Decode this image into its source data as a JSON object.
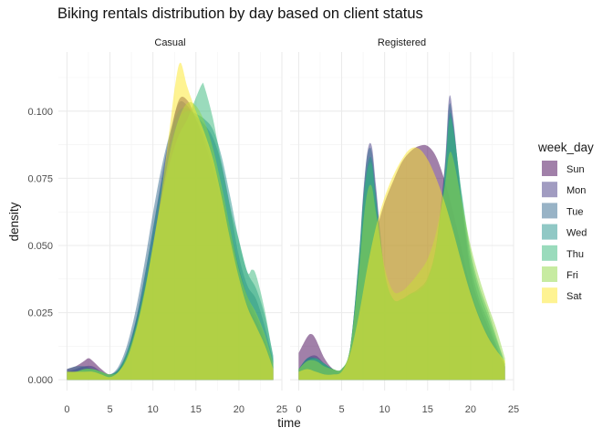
{
  "chart_data": {
    "type": "area",
    "title": "Biking rentals distribution by day based on client status",
    "xlabel": "time",
    "ylabel": "density",
    "xlim": [
      -1,
      25
    ],
    "ylim": [
      -0.004,
      0.122
    ],
    "x_ticks": [
      0,
      5,
      10,
      15,
      20,
      25
    ],
    "y_ticks": [
      0.0,
      0.025,
      0.05,
      0.075,
      0.1
    ],
    "y_tick_labels": [
      "0.000",
      "0.025",
      "0.050",
      "0.075",
      "0.100"
    ],
    "grid": true,
    "legend_position": "right",
    "legend_title": "week_day",
    "panels": [
      {
        "label": "Casual",
        "series": [
          {
            "name": "Sun",
            "x": [
              0,
              1,
              2,
              2.5,
              3,
              4,
              5,
              6,
              7,
              8,
              9,
              10,
              11,
              12,
              13,
              14,
              15,
              16,
              17,
              18,
              19,
              20,
              21,
              22,
              23,
              24
            ],
            "values": [
              0.004,
              0.005,
              0.007,
              0.008,
              0.007,
              0.004,
              0.002,
              0.004,
              0.01,
              0.021,
              0.034,
              0.05,
              0.07,
              0.09,
              0.104,
              0.104,
              0.097,
              0.088,
              0.078,
              0.066,
              0.052,
              0.038,
              0.028,
              0.022,
              0.014,
              0.004
            ]
          },
          {
            "name": "Mon",
            "x": [
              0,
              1,
              2,
              3,
              4,
              5,
              6,
              7,
              8,
              9,
              10,
              11,
              12,
              13,
              14,
              15,
              16,
              17,
              18,
              19,
              20,
              21,
              22,
              23,
              24
            ],
            "values": [
              0.003,
              0.004,
              0.005,
              0.005,
              0.003,
              0.002,
              0.004,
              0.01,
              0.022,
              0.038,
              0.056,
              0.075,
              0.092,
              0.103,
              0.102,
              0.097,
              0.09,
              0.081,
              0.07,
              0.056,
              0.042,
              0.031,
              0.024,
              0.016,
              0.005
            ]
          },
          {
            "name": "Tue",
            "x": [
              0,
              1,
              2,
              3,
              4,
              5,
              6,
              7,
              8,
              9,
              10,
              11,
              12,
              13,
              14,
              15,
              16,
              17,
              18,
              19,
              20,
              21,
              22,
              23,
              24
            ],
            "values": [
              0.004,
              0.005,
              0.005,
              0.004,
              0.003,
              0.002,
              0.005,
              0.013,
              0.026,
              0.043,
              0.062,
              0.079,
              0.092,
              0.1,
              0.101,
              0.098,
              0.095,
              0.09,
              0.08,
              0.064,
              0.046,
              0.035,
              0.03,
              0.02,
              0.007
            ]
          },
          {
            "name": "Wed",
            "x": [
              0,
              1,
              2,
              3,
              4,
              5,
              6,
              7,
              8,
              9,
              10,
              11,
              12,
              13,
              14,
              15,
              16,
              17,
              18,
              19,
              20,
              21,
              22,
              23,
              24
            ],
            "values": [
              0.003,
              0.003,
              0.004,
              0.004,
              0.003,
              0.002,
              0.004,
              0.011,
              0.022,
              0.038,
              0.056,
              0.073,
              0.087,
              0.097,
              0.1,
              0.099,
              0.097,
              0.093,
              0.083,
              0.068,
              0.052,
              0.04,
              0.034,
              0.024,
              0.009
            ]
          },
          {
            "name": "Thu",
            "x": [
              0,
              1,
              2,
              3,
              4,
              5,
              6,
              7,
              8,
              9,
              10,
              11,
              12,
              13,
              14,
              15,
              15.7,
              16,
              17,
              18,
              19,
              20,
              21,
              21.5,
              22,
              23,
              24
            ],
            "values": [
              0.003,
              0.003,
              0.004,
              0.004,
              0.003,
              0.002,
              0.004,
              0.01,
              0.02,
              0.034,
              0.05,
              0.067,
              0.081,
              0.091,
              0.097,
              0.105,
              0.11,
              0.109,
              0.097,
              0.08,
              0.064,
              0.052,
              0.04,
              0.041,
              0.039,
              0.026,
              0.008
            ]
          },
          {
            "name": "Fri",
            "x": [
              0,
              1,
              2,
              3,
              4,
              5,
              6,
              7,
              8,
              9,
              10,
              11,
              12,
              13,
              14,
              15,
              16,
              17,
              18,
              19,
              20,
              21,
              22,
              23,
              24
            ],
            "values": [
              0.003,
              0.003,
              0.004,
              0.004,
              0.003,
              0.002,
              0.003,
              0.009,
              0.019,
              0.033,
              0.05,
              0.068,
              0.085,
              0.097,
              0.103,
              0.102,
              0.096,
              0.086,
              0.072,
              0.056,
              0.041,
              0.031,
              0.025,
              0.017,
              0.006
            ]
          },
          {
            "name": "Sat",
            "x": [
              0,
              1,
              2,
              3,
              4,
              5,
              6,
              7,
              8,
              9,
              10,
              11,
              12,
              12.6,
              13.2,
              14,
              15,
              16,
              17,
              18,
              19,
              20,
              21,
              22,
              23,
              24
            ],
            "values": [
              0.003,
              0.003,
              0.003,
              0.003,
              0.002,
              0.001,
              0.003,
              0.008,
              0.018,
              0.032,
              0.05,
              0.07,
              0.095,
              0.11,
              0.118,
              0.109,
              0.1,
              0.092,
              0.082,
              0.068,
              0.052,
              0.038,
              0.027,
              0.02,
              0.013,
              0.004
            ]
          }
        ]
      },
      {
        "label": "Registered",
        "series": [
          {
            "name": "Sun",
            "x": [
              0,
              1,
              1.5,
              2,
              3,
              4,
              5,
              6,
              7,
              8,
              9,
              10,
              11,
              12,
              13,
              14,
              15,
              16,
              17,
              18,
              19,
              20,
              21,
              22,
              23,
              24
            ],
            "values": [
              0.01,
              0.016,
              0.017,
              0.015,
              0.008,
              0.004,
              0.003,
              0.01,
              0.024,
              0.042,
              0.055,
              0.066,
              0.074,
              0.081,
              0.085,
              0.087,
              0.087,
              0.083,
              0.074,
              0.062,
              0.048,
              0.034,
              0.024,
              0.017,
              0.011,
              0.005
            ]
          },
          {
            "name": "Mon",
            "x": [
              0,
              1,
              2,
              3,
              4,
              5,
              6,
              7,
              7.5,
              8,
              8.5,
              9,
              10,
              11,
              12,
              13,
              14,
              15,
              16,
              17,
              17.5,
              18,
              19,
              20,
              21,
              22,
              23,
              24
            ],
            "values": [
              0.004,
              0.008,
              0.009,
              0.006,
              0.004,
              0.004,
              0.012,
              0.045,
              0.068,
              0.085,
              0.087,
              0.072,
              0.04,
              0.03,
              0.03,
              0.032,
              0.034,
              0.038,
              0.05,
              0.08,
              0.105,
              0.097,
              0.065,
              0.04,
              0.028,
              0.02,
              0.012,
              0.005
            ]
          },
          {
            "name": "Tue",
            "x": [
              0,
              1,
              2,
              3,
              4,
              5,
              6,
              7,
              7.5,
              8,
              8.5,
              9,
              10,
              11,
              12,
              13,
              14,
              15,
              16,
              17,
              17.5,
              18,
              19,
              20,
              21,
              22,
              23,
              24
            ],
            "values": [
              0.004,
              0.008,
              0.008,
              0.006,
              0.004,
              0.004,
              0.012,
              0.046,
              0.069,
              0.084,
              0.085,
              0.07,
              0.04,
              0.03,
              0.03,
              0.032,
              0.033,
              0.037,
              0.05,
              0.079,
              0.102,
              0.095,
              0.066,
              0.043,
              0.03,
              0.022,
              0.013,
              0.005
            ]
          },
          {
            "name": "Wed",
            "x": [
              0,
              1,
              2,
              3,
              4,
              5,
              6,
              7,
              7.5,
              8,
              8.5,
              9,
              10,
              11,
              12,
              13,
              14,
              15,
              16,
              17,
              17.5,
              18,
              19,
              20,
              21,
              22,
              23,
              24
            ],
            "values": [
              0.004,
              0.008,
              0.008,
              0.006,
              0.004,
              0.004,
              0.012,
              0.045,
              0.066,
              0.08,
              0.082,
              0.068,
              0.04,
              0.03,
              0.03,
              0.032,
              0.033,
              0.037,
              0.049,
              0.076,
              0.098,
              0.094,
              0.068,
              0.046,
              0.033,
              0.024,
              0.015,
              0.006
            ]
          },
          {
            "name": "Thu",
            "x": [
              0,
              1,
              2,
              3,
              4,
              5,
              6,
              7,
              7.5,
              8,
              8.5,
              9,
              10,
              11,
              12,
              13,
              14,
              15,
              16,
              17,
              17.5,
              18,
              19,
              20,
              21,
              22,
              23,
              24
            ],
            "values": [
              0.004,
              0.007,
              0.008,
              0.006,
              0.004,
              0.004,
              0.012,
              0.044,
              0.065,
              0.078,
              0.08,
              0.066,
              0.04,
              0.03,
              0.03,
              0.032,
              0.034,
              0.038,
              0.05,
              0.076,
              0.096,
              0.093,
              0.069,
              0.048,
              0.035,
              0.026,
              0.016,
              0.006
            ]
          },
          {
            "name": "Fri",
            "x": [
              0,
              1,
              2,
              3,
              4,
              5,
              6,
              7,
              7.5,
              8,
              8.5,
              9,
              10,
              11,
              12,
              13,
              14,
              15,
              16,
              17,
              17.5,
              18,
              19,
              20,
              21,
              22,
              23,
              24
            ],
            "values": [
              0.004,
              0.007,
              0.007,
              0.005,
              0.004,
              0.004,
              0.012,
              0.04,
              0.058,
              0.07,
              0.072,
              0.062,
              0.042,
              0.033,
              0.033,
              0.036,
              0.04,
              0.045,
              0.055,
              0.072,
              0.084,
              0.082,
              0.066,
              0.05,
              0.038,
              0.028,
              0.019,
              0.008
            ]
          },
          {
            "name": "Sat",
            "x": [
              0,
              1,
              2,
              3,
              4,
              5,
              6,
              7,
              8,
              9,
              10,
              11,
              12,
              13,
              14,
              15,
              16,
              17,
              18,
              19,
              20,
              21,
              22,
              23,
              24
            ],
            "values": [
              0.003,
              0.004,
              0.003,
              0.002,
              0.002,
              0.003,
              0.01,
              0.024,
              0.042,
              0.057,
              0.068,
              0.076,
              0.082,
              0.086,
              0.086,
              0.082,
              0.075,
              0.066,
              0.055,
              0.043,
              0.032,
              0.023,
              0.016,
              0.011,
              0.007
            ]
          }
        ]
      }
    ],
    "colors": {
      "Sun": "#440154",
      "Mon": "#443983",
      "Tue": "#31688e",
      "Wed": "#21918c",
      "Thu": "#35b779",
      "Fri": "#90d743",
      "Sat": "#fde725"
    },
    "fill_opacity": 0.5
  }
}
